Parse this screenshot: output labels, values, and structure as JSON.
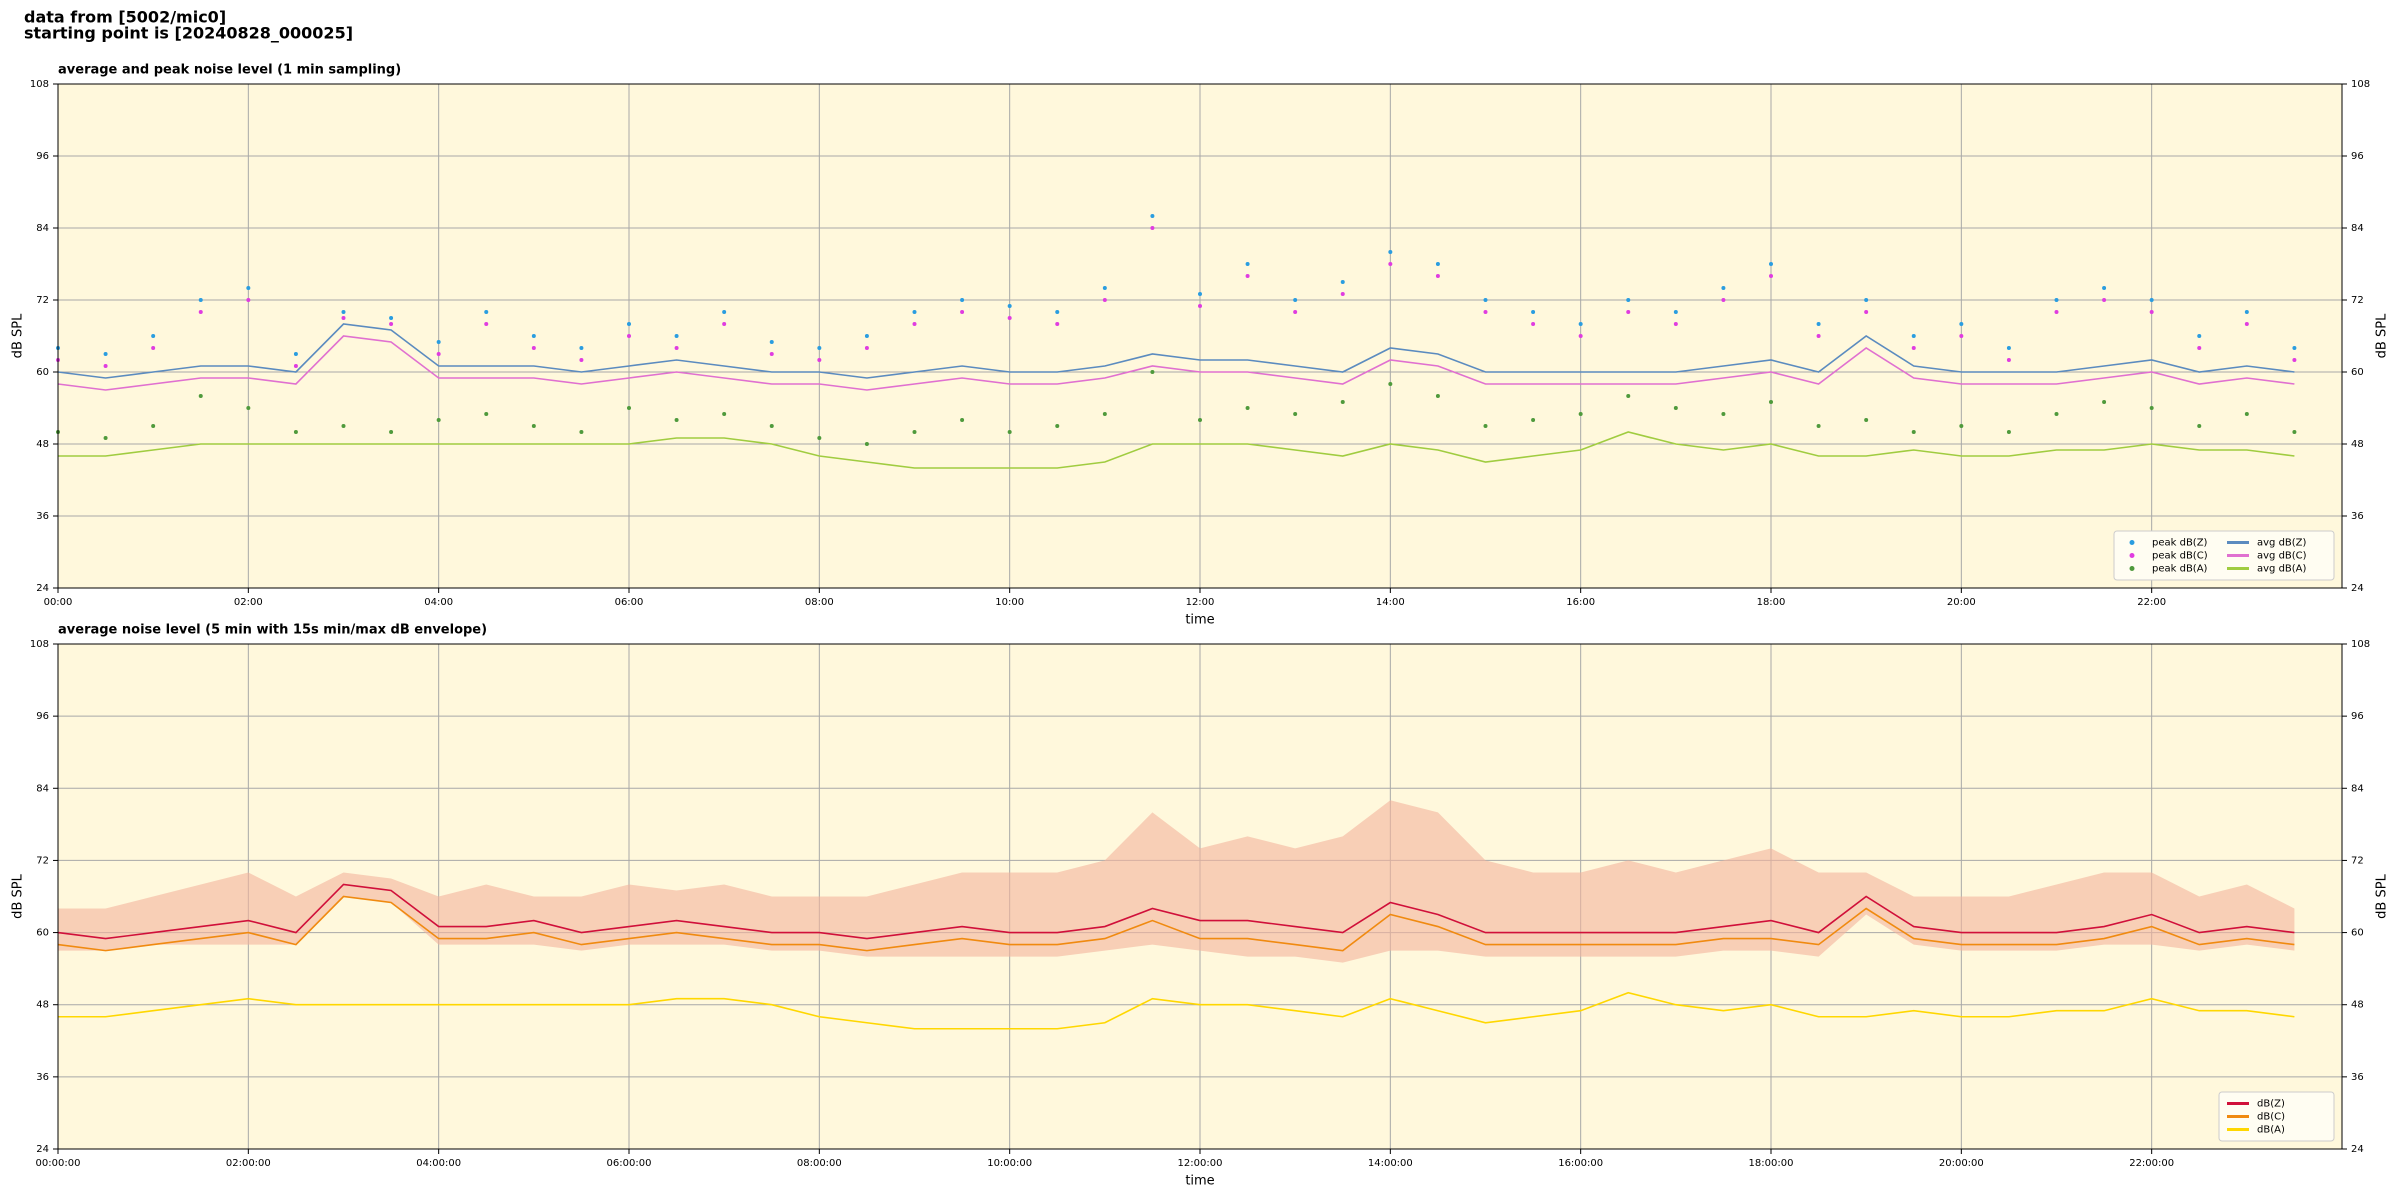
{
  "header": {
    "lines": [
      "data from [5002/mic0]",
      "starting point is [20240828_000025]"
    ]
  },
  "chart_data": [
    {
      "type": "line",
      "title": "average and peak noise level (1 min sampling)",
      "x_label": "time",
      "y_label": "dB SPL",
      "xlim": [
        0,
        24
      ],
      "ylim": [
        24,
        108
      ],
      "yticks": [
        24,
        36,
        48,
        60,
        72,
        84,
        96,
        108
      ],
      "xticks": [
        {
          "value": 0,
          "label": "00:00"
        },
        {
          "value": 2,
          "label": "02:00"
        },
        {
          "value": 4,
          "label": "04:00"
        },
        {
          "value": 6,
          "label": "06:00"
        },
        {
          "value": 8,
          "label": "08:00"
        },
        {
          "value": 10,
          "label": "10:00"
        },
        {
          "value": 12,
          "label": "12:00"
        },
        {
          "value": 14,
          "label": "14:00"
        },
        {
          "value": 16,
          "label": "16:00"
        },
        {
          "value": 18,
          "label": "18:00"
        },
        {
          "value": 20,
          "label": "20:00"
        },
        {
          "value": 22,
          "label": "22:00"
        }
      ],
      "grid": true,
      "legend": "lower right",
      "legend_columns": 2,
      "x": [
        0,
        0.5,
        1,
        1.5,
        2,
        2.5,
        3,
        3.5,
        4,
        4.5,
        5,
        5.5,
        6,
        6.5,
        7,
        7.5,
        8,
        8.5,
        9,
        9.5,
        10,
        10.5,
        11,
        11.5,
        12,
        12.5,
        13,
        13.5,
        14,
        14.5,
        15,
        15.5,
        16,
        16.5,
        17,
        17.5,
        18,
        18.5,
        19,
        19.5,
        20,
        20.5,
        21,
        21.5,
        22,
        22.5,
        23,
        23.5
      ],
      "series": [
        {
          "name": "peak dB(Z)",
          "style": "dots",
          "color": "#2a9de0",
          "values": [
            64,
            63,
            66,
            72,
            74,
            63,
            70,
            69,
            65,
            70,
            66,
            64,
            68,
            66,
            70,
            65,
            64,
            66,
            70,
            72,
            71,
            70,
            74,
            86,
            73,
            78,
            72,
            75,
            80,
            78,
            72,
            70,
            68,
            72,
            70,
            74,
            78,
            68,
            72,
            66,
            68,
            64,
            72,
            74,
            72,
            66,
            70,
            64
          ]
        },
        {
          "name": "peak dB(C)",
          "style": "dots",
          "color": "#e03ce0",
          "values": [
            62,
            61,
            64,
            70,
            72,
            61,
            69,
            68,
            63,
            68,
            64,
            62,
            66,
            64,
            68,
            63,
            62,
            64,
            68,
            70,
            69,
            68,
            72,
            84,
            71,
            76,
            70,
            73,
            78,
            76,
            70,
            68,
            66,
            70,
            68,
            72,
            76,
            66,
            70,
            64,
            66,
            62,
            70,
            72,
            70,
            64,
            68,
            62
          ]
        },
        {
          "name": "peak dB(A)",
          "style": "dots",
          "color": "#4f9a3c",
          "values": [
            50,
            49,
            51,
            56,
            54,
            50,
            51,
            50,
            52,
            53,
            51,
            50,
            54,
            52,
            53,
            51,
            49,
            48,
            50,
            52,
            50,
            51,
            53,
            60,
            52,
            54,
            53,
            55,
            58,
            56,
            51,
            52,
            53,
            56,
            54,
            53,
            55,
            51,
            52,
            50,
            51,
            50,
            53,
            55,
            54,
            51,
            53,
            50
          ]
        },
        {
          "name": "avg dB(Z)",
          "style": "line",
          "color": "#5b8bbf",
          "values": [
            60,
            59,
            60,
            61,
            61,
            60,
            68,
            67,
            61,
            61,
            61,
            60,
            61,
            62,
            61,
            60,
            60,
            59,
            60,
            61,
            60,
            60,
            61,
            63,
            62,
            62,
            61,
            60,
            64,
            63,
            60,
            60,
            60,
            60,
            60,
            61,
            62,
            60,
            66,
            61,
            60,
            60,
            60,
            61,
            62,
            60,
            61,
            60
          ]
        },
        {
          "name": "avg dB(C)",
          "style": "line",
          "color": "#e070d0",
          "values": [
            58,
            57,
            58,
            59,
            59,
            58,
            66,
            65,
            59,
            59,
            59,
            58,
            59,
            60,
            59,
            58,
            58,
            57,
            58,
            59,
            58,
            58,
            59,
            61,
            60,
            60,
            59,
            58,
            62,
            61,
            58,
            58,
            58,
            58,
            58,
            59,
            60,
            58,
            64,
            59,
            58,
            58,
            58,
            59,
            60,
            58,
            59,
            58
          ]
        },
        {
          "name": "avg dB(A)",
          "style": "line",
          "color": "#a0cc40",
          "values": [
            46,
            46,
            47,
            48,
            48,
            48,
            48,
            48,
            48,
            48,
            48,
            48,
            48,
            49,
            49,
            48,
            46,
            45,
            44,
            44,
            44,
            44,
            45,
            48,
            48,
            48,
            47,
            46,
            48,
            47,
            45,
            46,
            47,
            50,
            48,
            47,
            48,
            46,
            46,
            47,
            46,
            46,
            47,
            47,
            48,
            47,
            47,
            46
          ]
        }
      ]
    },
    {
      "type": "line",
      "title": "average noise level (5 min with 15s min/max dB envelope)",
      "x_label": "time",
      "y_label": "dB SPL",
      "xlim": [
        0,
        24
      ],
      "ylim": [
        24,
        108
      ],
      "yticks": [
        24,
        36,
        48,
        60,
        72,
        84,
        96,
        108
      ],
      "xticks": [
        {
          "value": 0,
          "label": "00:00:00"
        },
        {
          "value": 2,
          "label": "02:00:00"
        },
        {
          "value": 4,
          "label": "04:00:00"
        },
        {
          "value": 6,
          "label": "06:00:00"
        },
        {
          "value": 8,
          "label": "08:00:00"
        },
        {
          "value": 10,
          "label": "10:00:00"
        },
        {
          "value": 12,
          "label": "12:00:00"
        },
        {
          "value": 14,
          "label": "14:00:00"
        },
        {
          "value": 16,
          "label": "16:00:00"
        },
        {
          "value": 18,
          "label": "18:00:00"
        },
        {
          "value": 20,
          "label": "20:00:00"
        },
        {
          "value": 22,
          "label": "22:00:00"
        }
      ],
      "grid": true,
      "legend": "lower right",
      "legend_columns": 1,
      "x": [
        0,
        0.5,
        1,
        1.5,
        2,
        2.5,
        3,
        3.5,
        4,
        4.5,
        5,
        5.5,
        6,
        6.5,
        7,
        7.5,
        8,
        8.5,
        9,
        9.5,
        10,
        10.5,
        11,
        11.5,
        12,
        12.5,
        13,
        13.5,
        14,
        14.5,
        15,
        15.5,
        16,
        16.5,
        17,
        17.5,
        18,
        18.5,
        19,
        19.5,
        20,
        20.5,
        21,
        21.5,
        22,
        22.5,
        23,
        23.5
      ],
      "envelope": {
        "color": "#f4b49c",
        "lower": [
          57,
          57,
          58,
          58,
          58,
          58,
          66,
          65,
          58,
          58,
          58,
          57,
          58,
          58,
          58,
          57,
          57,
          56,
          56,
          56,
          56,
          56,
          57,
          58,
          57,
          56,
          56,
          55,
          57,
          57,
          56,
          56,
          56,
          56,
          56,
          57,
          57,
          56,
          63,
          58,
          57,
          57,
          57,
          58,
          58,
          57,
          58,
          57
        ],
        "upper": [
          64,
          64,
          66,
          68,
          70,
          66,
          70,
          69,
          66,
          68,
          66,
          66,
          68,
          67,
          68,
          66,
          66,
          66,
          68,
          70,
          70,
          70,
          72,
          80,
          74,
          76,
          74,
          76,
          82,
          80,
          72,
          70,
          70,
          72,
          70,
          72,
          74,
          70,
          70,
          66,
          66,
          66,
          68,
          70,
          70,
          66,
          68,
          64
        ]
      },
      "series": [
        {
          "name": "dB(Z)",
          "style": "line",
          "color": "#d0103a",
          "values": [
            60,
            59,
            60,
            61,
            62,
            60,
            68,
            67,
            61,
            61,
            62,
            60,
            61,
            62,
            61,
            60,
            60,
            59,
            60,
            61,
            60,
            60,
            61,
            64,
            62,
            62,
            61,
            60,
            65,
            63,
            60,
            60,
            60,
            60,
            60,
            61,
            62,
            60,
            66,
            61,
            60,
            60,
            60,
            61,
            63,
            60,
            61,
            60
          ]
        },
        {
          "name": "dB(C)",
          "style": "line",
          "color": "#f08a10",
          "values": [
            58,
            57,
            58,
            59,
            60,
            58,
            66,
            65,
            59,
            59,
            60,
            58,
            59,
            60,
            59,
            58,
            58,
            57,
            58,
            59,
            58,
            58,
            59,
            62,
            59,
            59,
            58,
            57,
            63,
            61,
            58,
            58,
            58,
            58,
            58,
            59,
            59,
            58,
            64,
            59,
            58,
            58,
            58,
            59,
            61,
            58,
            59,
            58
          ]
        },
        {
          "name": "dB(A)",
          "style": "line",
          "color": "#ffd700",
          "values": [
            46,
            46,
            47,
            48,
            49,
            48,
            48,
            48,
            48,
            48,
            48,
            48,
            48,
            49,
            49,
            48,
            46,
            45,
            44,
            44,
            44,
            44,
            45,
            49,
            48,
            48,
            47,
            46,
            49,
            47,
            45,
            46,
            47,
            50,
            48,
            47,
            48,
            46,
            46,
            47,
            46,
            46,
            47,
            47,
            49,
            47,
            47,
            46
          ]
        }
      ]
    }
  ]
}
